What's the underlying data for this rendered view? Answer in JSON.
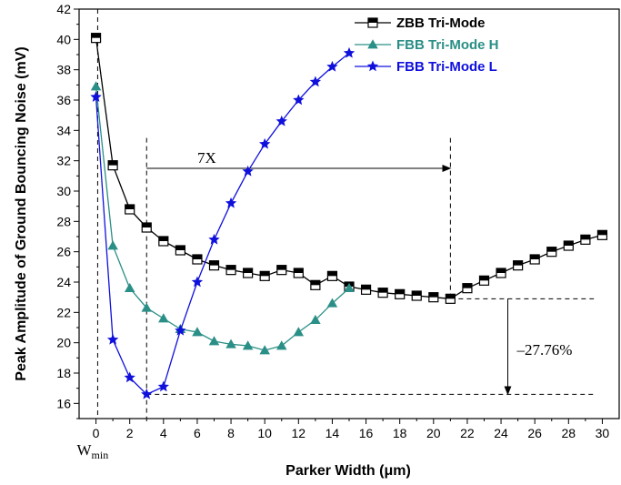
{
  "chart_data": {
    "type": "line",
    "xlabel": "Parker Width (μm)",
    "ylabel": "Peak Amplitude of Ground Bouncing Noise (mV)",
    "xlim": [
      -1,
      31
    ],
    "ylim": [
      15,
      42
    ],
    "xticks": [
      0,
      2,
      4,
      6,
      8,
      10,
      12,
      14,
      16,
      18,
      20,
      22,
      24,
      26,
      28,
      30
    ],
    "yticks": [
      16,
      18,
      20,
      22,
      24,
      26,
      28,
      30,
      32,
      34,
      36,
      38,
      40,
      42
    ],
    "grid": false,
    "legend_position": "top-right",
    "series": [
      {
        "name": "ZBB Tri-Mode",
        "color": "#000000",
        "marker": "half-filled-square",
        "x": [
          0,
          1,
          2,
          3,
          4,
          5,
          6,
          7,
          8,
          9,
          10,
          11,
          12,
          13,
          14,
          15,
          16,
          17,
          18,
          19,
          20,
          21,
          22,
          23,
          24,
          25,
          26,
          27,
          28,
          29,
          30
        ],
        "values": [
          40.1,
          31.7,
          28.8,
          27.6,
          26.7,
          26.1,
          25.5,
          25.1,
          24.8,
          24.6,
          24.4,
          24.8,
          24.6,
          23.8,
          24.4,
          23.7,
          23.5,
          23.3,
          23.2,
          23.1,
          23.0,
          22.9,
          23.6,
          24.1,
          24.6,
          25.1,
          25.5,
          26.0,
          26.4,
          26.8,
          27.1
        ]
      },
      {
        "name": "FBB Tri-Mode H",
        "color": "#2a8f86",
        "marker": "triangle",
        "x": [
          0,
          1,
          2,
          3,
          4,
          5,
          6,
          7,
          8,
          9,
          10,
          11,
          12,
          13,
          14,
          15
        ],
        "values": [
          36.9,
          26.4,
          23.6,
          22.3,
          21.6,
          20.9,
          20.7,
          20.1,
          19.9,
          19.8,
          19.5,
          19.8,
          20.7,
          21.5,
          22.6,
          23.6
        ]
      },
      {
        "name": "FBB Tri-Mode L",
        "color": "#1010dd",
        "marker": "star",
        "x": [
          0,
          1,
          2,
          3,
          4,
          5,
          6,
          7,
          8,
          9,
          10,
          11,
          12,
          13,
          14,
          15
        ],
        "values": [
          36.2,
          20.2,
          17.7,
          16.6,
          17.1,
          20.8,
          24.0,
          26.8,
          29.2,
          31.3,
          33.1,
          34.6,
          36.0,
          37.2,
          38.2,
          39.1
        ]
      }
    ],
    "annotations": {
      "wmin_label": "W",
      "wmin_sub": "min",
      "wmin_x": 0.1,
      "arrow_7x": {
        "label": "7X",
        "x_start": 3,
        "x_end": 21,
        "y": 31.5
      },
      "arrow_pct": {
        "label": "–27.76%",
        "x": 24.4,
        "y_top": 22.9,
        "y_bottom": 16.6
      },
      "guide_y_high": 22.9,
      "guide_y_low": 16.6,
      "guide_x_end": 29.5,
      "vline_x3": 3,
      "vline_x21": 21
    }
  }
}
